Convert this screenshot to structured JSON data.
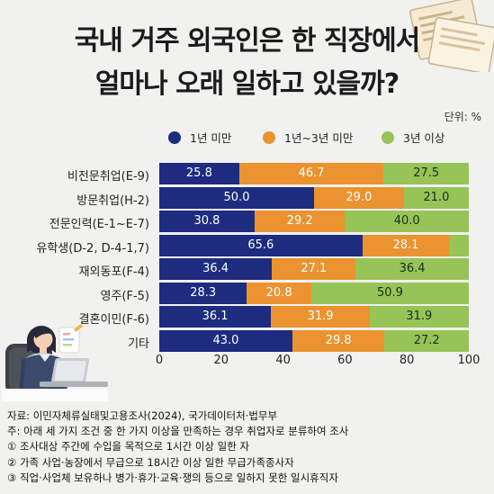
{
  "title": {
    "line1": "국내 거주 외국인은 한 직장에서",
    "line2": "얼마나 오래 일하고 있을까?"
  },
  "unit_label": "단위: %",
  "colors": {
    "series1": "#1d2c7f",
    "series2": "#ea9330",
    "series3": "#96c457",
    "background": "#f1f1ef"
  },
  "chart_data": {
    "type": "bar",
    "orientation": "horizontal",
    "stacked": true,
    "categories": [
      "비전문취업(E-9)",
      "방문취업(H-2)",
      "전문인력(E-1~E-7)",
      "유학생(D-2, D-4-1,7)",
      "재외동포(F-4)",
      "영주(F-5)",
      "결혼이민(F-6)",
      "기타"
    ],
    "series": [
      {
        "name": "1년 미만",
        "values": [
          25.8,
          50.0,
          30.8,
          65.6,
          36.4,
          28.3,
          36.1,
          43.0
        ],
        "labels": [
          "25.8",
          "50.0",
          "30.8",
          "65.6",
          "36.4",
          "28.3",
          "36.1",
          "43.0"
        ]
      },
      {
        "name": "1년~3년 미만",
        "values": [
          46.7,
          29.0,
          29.2,
          28.1,
          27.1,
          20.8,
          31.9,
          29.8
        ],
        "labels": [
          "46.7",
          "29.0",
          "29.2",
          "28.1",
          "27.1",
          "20.8",
          "31.9",
          "29.8"
        ]
      },
      {
        "name": "3년 이상",
        "values": [
          27.5,
          21.0,
          40.0,
          6.3,
          36.4,
          50.9,
          31.9,
          27.2
        ],
        "labels": [
          "27.5",
          "21.0",
          "40.0",
          "",
          "36.4",
          "50.9",
          "31.9",
          "27.2"
        ]
      }
    ],
    "xlim": [
      0,
      100
    ],
    "xticks": [
      "0",
      "20",
      "40",
      "60",
      "80",
      "100"
    ],
    "legend_position": "top",
    "grid": false
  },
  "notes": [
    "자료: 이민자체류실태및고용조사(2024), 국가데이터처·법무부",
    "주: 아래 세 가지 조건 중 한 가지 이상을 만족하는 경우 취업자로 분류하여 조사",
    "① 조사대상 주간에 수입을 목적으로 1시간 이상 일한 자",
    "② 가족 사업·농장에서 무급으로 18시간 이상 일한 무급가족종사자",
    "③ 직업·사업체 보유하나 병가·휴가·교육·쟁의 등으로 일하지 못한 일시휴직자"
  ]
}
